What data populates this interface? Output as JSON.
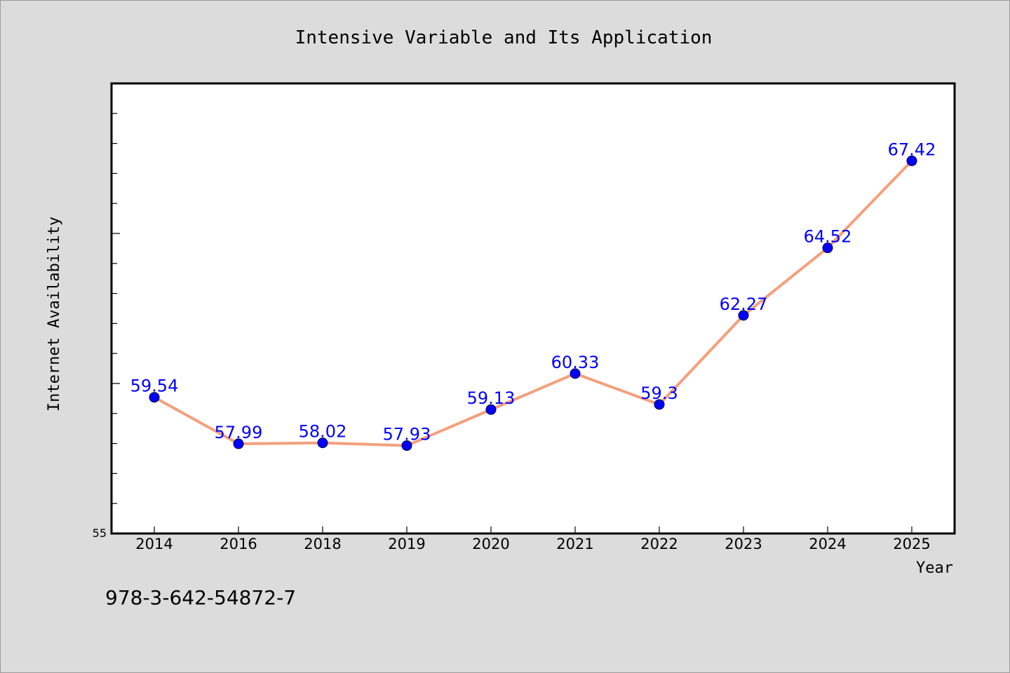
{
  "chart_data": {
    "type": "line",
    "title": "Intensive Variable and Its Application",
    "xlabel": "Year",
    "ylabel": "Internet Availability",
    "categories": [
      "2014",
      "2016",
      "2018",
      "2019",
      "2020",
      "2021",
      "2022",
      "2023",
      "2024",
      "2025"
    ],
    "series": [
      {
        "values": [
          59.54,
          57.99,
          58.02,
          57.93,
          59.13,
          60.33,
          59.3,
          62.27,
          64.52,
          67.42
        ],
        "labels": [
          "59.54",
          "57.99",
          "58.02",
          "57.93",
          "59.13",
          "60.33",
          "59.3",
          "62.27",
          "64.52",
          "67.42"
        ],
        "line_color": "#f4a07c",
        "marker_color": "#0000ff"
      }
    ],
    "ylim": [
      55,
      70
    ],
    "y_tick_labels": [
      "55"
    ],
    "grid": false,
    "legend": "none"
  },
  "footer": {
    "isbn": "978-3-642-54872-7"
  }
}
